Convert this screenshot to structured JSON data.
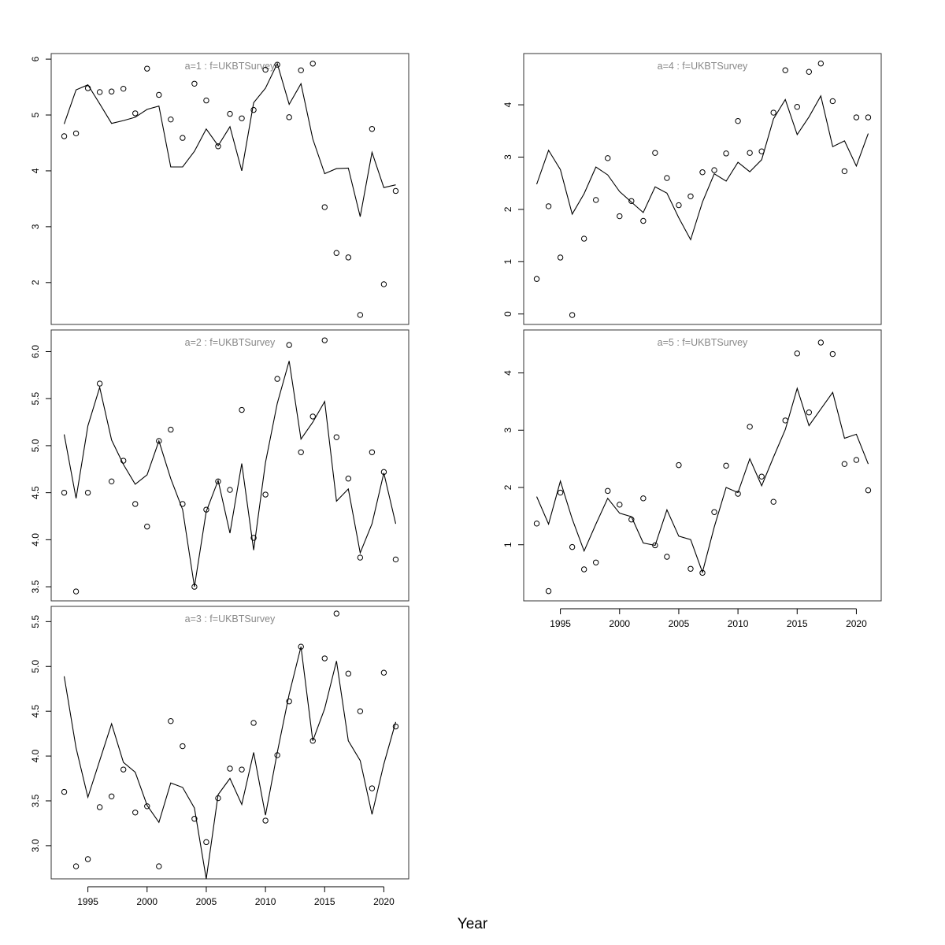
{
  "xlabel": "Year",
  "chart_data": {
    "type": "scatter",
    "xlabel": "Year",
    "x": [
      1993,
      1994,
      1995,
      1996,
      1997,
      1998,
      1999,
      2000,
      2001,
      2002,
      2003,
      2004,
      2005,
      2006,
      2007,
      2008,
      2009,
      2010,
      2011,
      2012,
      2013,
      2014,
      2015,
      2016,
      2017,
      2018,
      2019,
      2020,
      2021
    ],
    "x_ticks": [
      1995,
      2000,
      2005,
      2010,
      2015,
      2020
    ],
    "panels": [
      {
        "id": "a1",
        "title": "a=1  :  f=UKBTSurvey",
        "ylim": [
          1.25,
          6.1
        ],
        "y_ticks": [
          2,
          3,
          4,
          5,
          6
        ],
        "y_tick_labels": [
          "2",
          "3",
          "4",
          "5",
          "6"
        ],
        "observed": [
          4.62,
          4.67,
          5.48,
          5.41,
          5.42,
          5.47,
          5.03,
          5.83,
          5.36,
          4.92,
          4.59,
          5.56,
          5.26,
          4.44,
          5.02,
          4.94,
          5.09,
          5.81,
          5.9,
          4.96,
          5.8,
          5.92,
          3.35,
          2.53,
          2.45,
          1.42,
          4.75,
          1.97,
          3.64
        ],
        "fitted": [
          4.84,
          5.45,
          5.54,
          5.2,
          4.85,
          4.9,
          4.96,
          5.1,
          5.16,
          4.07,
          4.07,
          4.35,
          4.75,
          4.45,
          4.79,
          4.0,
          5.22,
          5.48,
          5.92,
          5.19,
          5.56,
          4.57,
          3.95,
          4.04,
          4.05,
          3.18,
          4.33,
          3.7,
          3.75
        ]
      },
      {
        "id": "a2",
        "title": "a=2  :  f=UKBTSurvey",
        "ylim": [
          3.35,
          6.23
        ],
        "y_ticks": [
          3.5,
          4.0,
          4.5,
          5.0,
          5.5,
          6.0
        ],
        "y_tick_labels": [
          "3.5",
          "4.0",
          "4.5",
          "5.0",
          "5.5",
          "6.0"
        ],
        "observed": [
          4.5,
          3.45,
          4.5,
          5.66,
          4.62,
          4.84,
          4.38,
          4.14,
          5.05,
          5.17,
          4.38,
          3.5,
          4.32,
          4.62,
          4.53,
          5.38,
          4.02,
          4.48,
          5.71,
          6.07,
          4.93,
          5.31,
          6.12,
          5.09,
          4.65,
          3.81,
          4.93,
          4.72,
          3.79
        ],
        "fitted": [
          5.12,
          4.44,
          5.21,
          5.62,
          5.06,
          4.8,
          4.59,
          4.69,
          5.05,
          4.65,
          4.32,
          3.5,
          4.3,
          4.63,
          4.07,
          4.81,
          3.89,
          4.82,
          5.45,
          5.9,
          5.07,
          5.25,
          5.47,
          4.41,
          4.54,
          3.86,
          4.17,
          4.71,
          4.17
        ]
      },
      {
        "id": "a3",
        "title": "a=3  :  f=UKBTSurvey",
        "ylim": [
          2.63,
          5.67
        ],
        "y_ticks": [
          3.0,
          3.5,
          4.0,
          4.5,
          5.0,
          5.5
        ],
        "y_tick_labels": [
          "3.0",
          "3.5",
          "4.0",
          "4.5",
          "5.0",
          "5.5"
        ],
        "observed": [
          3.6,
          2.77,
          2.85,
          3.43,
          3.55,
          3.85,
          3.37,
          3.44,
          2.77,
          4.39,
          4.11,
          3.3,
          3.04,
          3.53,
          3.86,
          3.85,
          4.37,
          3.28,
          4.01,
          4.61,
          5.22,
          4.17,
          5.09,
          5.59,
          4.92,
          4.5,
          3.64,
          4.93,
          4.33
        ],
        "fitted": [
          4.89,
          4.09,
          3.54,
          3.95,
          4.36,
          3.93,
          3.82,
          3.45,
          3.26,
          3.7,
          3.65,
          3.42,
          2.63,
          3.57,
          3.75,
          3.46,
          4.04,
          3.34,
          4.04,
          4.69,
          5.22,
          4.17,
          4.53,
          5.06,
          4.17,
          3.95,
          3.35,
          3.91,
          4.38
        ]
      },
      {
        "id": "a4",
        "title": "a=4  :  f=UKBTSurvey",
        "ylim": [
          -0.2,
          4.98
        ],
        "y_ticks": [
          0,
          1,
          2,
          3,
          4
        ],
        "y_tick_labels": [
          "0",
          "1",
          "2",
          "3",
          "4"
        ],
        "observed": [
          0.67,
          2.06,
          1.08,
          -0.02,
          1.44,
          2.18,
          2.98,
          1.87,
          2.16,
          1.78,
          3.08,
          2.6,
          2.08,
          2.25,
          2.71,
          2.75,
          3.07,
          3.69,
          3.08,
          3.11,
          3.85,
          4.66,
          3.96,
          4.63,
          4.79,
          4.07,
          2.73,
          3.76,
          3.76
        ],
        "fitted": [
          2.48,
          3.13,
          2.76,
          1.91,
          2.3,
          2.81,
          2.66,
          2.34,
          2.14,
          1.94,
          2.43,
          2.31,
          1.84,
          1.42,
          2.14,
          2.68,
          2.54,
          2.9,
          2.72,
          2.95,
          3.73,
          4.1,
          3.43,
          3.77,
          4.17,
          3.2,
          3.31,
          2.83,
          3.45
        ]
      },
      {
        "id": "a5",
        "title": "a=5  :  f=UKBTSurvey",
        "ylim": [
          0.02,
          4.75
        ],
        "y_ticks": [
          1,
          2,
          3,
          4
        ],
        "y_tick_labels": [
          "1",
          "2",
          "3",
          "4"
        ],
        "observed": [
          1.37,
          0.19,
          1.91,
          0.96,
          0.57,
          0.69,
          1.94,
          1.7,
          1.44,
          1.81,
          0.99,
          0.79,
          2.39,
          0.58,
          0.51,
          1.57,
          2.38,
          1.89,
          3.06,
          2.19,
          1.75,
          3.17,
          4.34,
          3.31,
          4.53,
          4.33,
          2.41,
          2.48,
          1.95
        ],
        "fitted": [
          1.84,
          1.36,
          2.11,
          1.45,
          0.89,
          1.36,
          1.81,
          1.55,
          1.49,
          1.03,
          0.99,
          1.61,
          1.15,
          1.09,
          0.52,
          1.31,
          2.0,
          1.91,
          2.5,
          2.03,
          2.53,
          3.01,
          3.73,
          3.08,
          3.37,
          3.66,
          2.86,
          2.93,
          2.41
        ]
      }
    ]
  }
}
